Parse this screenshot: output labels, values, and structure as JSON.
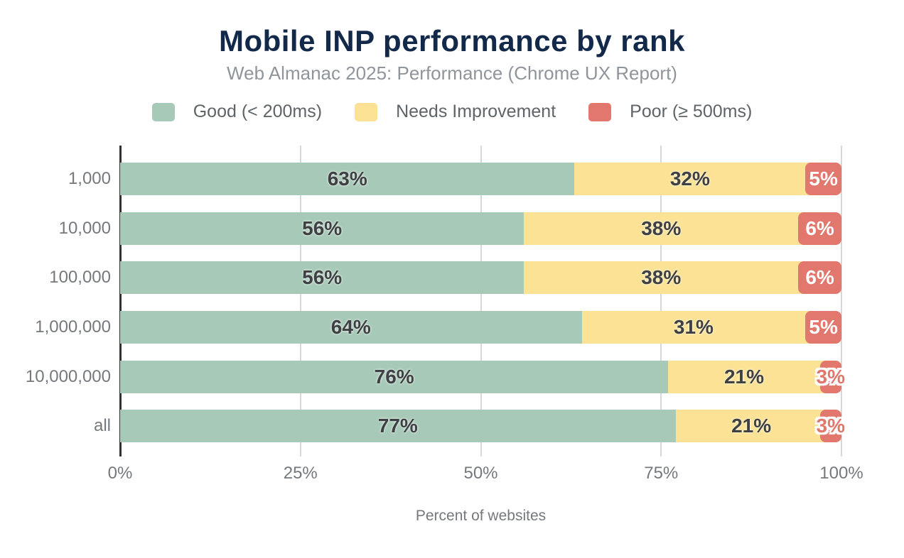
{
  "title": "Mobile INP performance by rank",
  "subtitle": "Web Almanac 2025: Performance (Chrome UX Report)",
  "colors": {
    "good": "#a7c9b7",
    "needs_improvement": "#fbe294",
    "poor": "#e1776d",
    "title_text": "#13294a",
    "muted_text": "#75797e",
    "value_text": "#3f4043",
    "gridline": "#d8d8d8",
    "axis_line": "#323232"
  },
  "legend": [
    {
      "label": "Good (< 200ms)",
      "color_key": "good"
    },
    {
      "label": "Needs Improvement",
      "color_key": "needs_improvement"
    },
    {
      "label": "Poor (≥ 500ms)",
      "color_key": "poor"
    }
  ],
  "chart_data": {
    "type": "bar",
    "orientation": "horizontal",
    "stacked": true,
    "title": "Mobile INP performance by rank",
    "subtitle": "Web Almanac 2025: Performance (Chrome UX Report)",
    "xlabel": "Percent of websites",
    "categories": [
      "1,000",
      "10,000",
      "100,000",
      "1,000,000",
      "10,000,000",
      "all"
    ],
    "series": [
      {
        "name": "Good (< 200ms)",
        "values": [
          63,
          56,
          56,
          64,
          76,
          77
        ]
      },
      {
        "name": "Needs Improvement",
        "values": [
          32,
          38,
          38,
          31,
          21,
          21
        ]
      },
      {
        "name": "Poor (≥ 500ms)",
        "values": [
          5,
          6,
          6,
          5,
          3,
          3
        ]
      }
    ],
    "x_ticks": [
      "0%",
      "25%",
      "50%",
      "75%",
      "100%"
    ],
    "xlim": [
      0,
      100
    ],
    "grid": "vertical",
    "legend_position": "top",
    "value_label_format": "{v}%"
  }
}
